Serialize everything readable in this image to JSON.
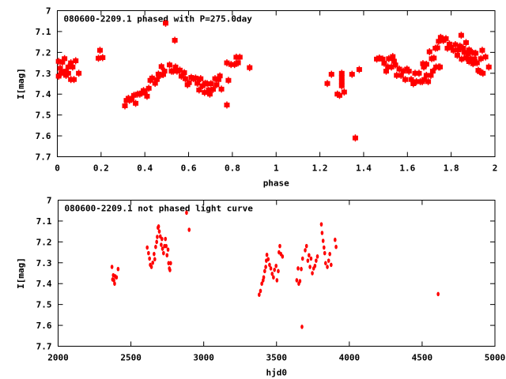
{
  "chart_data": [
    {
      "type": "scatter",
      "title": "080600-2209.1 phased with P=275.0day",
      "xlabel": "phase",
      "ylabel": "I[mag]",
      "xlim": [
        0,
        2
      ],
      "ylim": [
        7.7,
        7
      ],
      "xticks": [
        0,
        0.2,
        0.4,
        0.6,
        0.8,
        1,
        1.2,
        1.4,
        1.6,
        1.8,
        2
      ],
      "xtick_labels": [
        "0",
        "0.2",
        "0.4",
        "0.6",
        "0.8",
        "1",
        "1.2",
        "1.4",
        "1.6",
        "1.8",
        "2"
      ],
      "yticks": [
        7,
        7.1,
        7.2,
        7.3,
        7.4,
        7.5,
        7.6,
        7.7
      ],
      "ytick_labels": [
        "7",
        "7.1",
        "7.2",
        "7.3",
        "7.4",
        "7.5",
        "7.6",
        "7.7"
      ],
      "grid": false,
      "marker_color": "#ff0000",
      "points": [
        [
          0.006,
          7.243
        ],
        [
          0.013,
          7.276
        ],
        [
          0.023,
          7.247
        ],
        [
          0.033,
          7.23
        ],
        [
          0.006,
          7.314
        ],
        [
          0.028,
          7.297
        ],
        [
          0.04,
          7.29
        ],
        [
          0.05,
          7.27
        ],
        [
          0.05,
          7.3
        ],
        [
          0.062,
          7.25
        ],
        [
          0.062,
          7.33
        ],
        [
          0.07,
          7.27
        ],
        [
          0.076,
          7.33
        ],
        [
          0.084,
          7.24
        ],
        [
          0.098,
          7.3
        ],
        [
          0.04,
          7.31
        ],
        [
          0.018,
          7.3
        ],
        [
          0.188,
          7.228
        ],
        [
          0.195,
          7.19
        ],
        [
          0.207,
          7.225
        ],
        [
          0.309,
          7.456
        ],
        [
          0.316,
          7.43
        ],
        [
          0.325,
          7.42
        ],
        [
          0.33,
          7.43
        ],
        [
          0.34,
          7.425
        ],
        [
          0.35,
          7.406
        ],
        [
          0.358,
          7.444
        ],
        [
          0.367,
          7.4
        ],
        [
          0.377,
          7.4
        ],
        [
          0.385,
          7.395
        ],
        [
          0.394,
          7.383
        ],
        [
          0.4,
          7.39
        ],
        [
          0.41,
          7.41
        ],
        [
          0.418,
          7.372
        ],
        [
          0.425,
          7.334
        ],
        [
          0.433,
          7.323
        ],
        [
          0.447,
          7.348
        ],
        [
          0.455,
          7.33
        ],
        [
          0.462,
          7.304
        ],
        [
          0.47,
          7.31
        ],
        [
          0.476,
          7.268
        ],
        [
          0.484,
          7.306
        ],
        [
          0.49,
          7.29
        ],
        [
          0.495,
          7.06
        ],
        [
          0.513,
          7.26
        ],
        [
          0.522,
          7.29
        ],
        [
          0.53,
          7.29
        ],
        [
          0.537,
          7.142
        ],
        [
          0.54,
          7.27
        ],
        [
          0.547,
          7.29
        ],
        [
          0.56,
          7.285
        ],
        [
          0.567,
          7.314
        ],
        [
          0.58,
          7.297
        ],
        [
          0.585,
          7.326
        ],
        [
          0.595,
          7.355
        ],
        [
          0.602,
          7.345
        ],
        [
          0.612,
          7.32
        ],
        [
          0.622,
          7.326
        ],
        [
          0.632,
          7.323
        ],
        [
          0.64,
          7.348
        ],
        [
          0.648,
          7.38
        ],
        [
          0.655,
          7.326
        ],
        [
          0.664,
          7.36
        ],
        [
          0.673,
          7.392
        ],
        [
          0.676,
          7.348
        ],
        [
          0.685,
          7.35
        ],
        [
          0.692,
          7.38
        ],
        [
          0.697,
          7.4
        ],
        [
          0.702,
          7.35
        ],
        [
          0.712,
          7.377
        ],
        [
          0.721,
          7.326
        ],
        [
          0.728,
          7.355
        ],
        [
          0.737,
          7.33
        ],
        [
          0.743,
          7.313
        ],
        [
          0.75,
          7.376
        ],
        [
          0.775,
          7.25
        ],
        [
          0.775,
          7.452
        ],
        [
          0.782,
          7.334
        ],
        [
          0.794,
          7.258
        ],
        [
          0.81,
          7.258
        ],
        [
          0.826,
          7.25
        ],
        [
          0.818,
          7.223
        ],
        [
          0.834,
          7.223
        ],
        [
          0.879,
          7.273
        ],
        [
          1.234,
          7.349
        ],
        [
          1.253,
          7.305
        ],
        [
          1.28,
          7.4
        ],
        [
          1.29,
          7.406
        ],
        [
          1.3,
          7.3
        ],
        [
          1.3,
          7.32
        ],
        [
          1.3,
          7.34
        ],
        [
          1.3,
          7.36
        ],
        [
          1.311,
          7.39
        ],
        [
          1.347,
          7.305
        ],
        [
          1.362,
          7.61
        ],
        [
          1.38,
          7.282
        ],
        [
          1.46,
          7.232
        ],
        [
          1.472,
          7.227
        ],
        [
          1.487,
          7.232
        ],
        [
          1.494,
          7.252
        ],
        [
          1.503,
          7.29
        ],
        [
          1.511,
          7.27
        ],
        [
          1.515,
          7.23
        ],
        [
          1.527,
          7.27
        ],
        [
          1.533,
          7.22
        ],
        [
          1.539,
          7.242
        ],
        [
          1.545,
          7.26
        ],
        [
          1.551,
          7.31
        ],
        [
          1.563,
          7.28
        ],
        [
          1.571,
          7.31
        ],
        [
          1.581,
          7.29
        ],
        [
          1.59,
          7.33
        ],
        [
          1.598,
          7.28
        ],
        [
          1.607,
          7.29
        ],
        [
          1.617,
          7.33
        ],
        [
          1.627,
          7.35
        ],
        [
          1.635,
          7.3
        ],
        [
          1.641,
          7.34
        ],
        [
          1.653,
          7.3
        ],
        [
          1.659,
          7.34
        ],
        [
          1.668,
          7.34
        ],
        [
          1.671,
          7.254
        ],
        [
          1.675,
          7.27
        ],
        [
          1.677,
          7.33
        ],
        [
          1.687,
          7.257
        ],
        [
          1.687,
          7.31
        ],
        [
          1.695,
          7.34
        ],
        [
          1.701,
          7.197
        ],
        [
          1.707,
          7.31
        ],
        [
          1.711,
          7.23
        ],
        [
          1.716,
          7.29
        ],
        [
          1.721,
          7.227
        ],
        [
          1.728,
          7.18
        ],
        [
          1.731,
          7.27
        ],
        [
          1.737,
          7.178
        ],
        [
          1.743,
          7.27
        ],
        [
          1.749,
          7.27
        ],
        [
          1.743,
          7.147
        ],
        [
          1.752,
          7.128
        ],
        [
          1.764,
          7.143
        ],
        [
          1.776,
          7.134
        ],
        [
          1.783,
          7.18
        ],
        [
          1.792,
          7.16
        ],
        [
          1.8,
          7.176
        ],
        [
          1.81,
          7.19
        ],
        [
          1.819,
          7.163
        ],
        [
          1.828,
          7.214
        ],
        [
          1.834,
          7.188
        ],
        [
          1.84,
          7.17
        ],
        [
          1.846,
          7.118
        ],
        [
          1.848,
          7.232
        ],
        [
          1.855,
          7.18
        ],
        [
          1.86,
          7.2
        ],
        [
          1.868,
          7.153
        ],
        [
          1.868,
          7.227
        ],
        [
          1.876,
          7.206
        ],
        [
          1.882,
          7.188
        ],
        [
          1.882,
          7.244
        ],
        [
          1.888,
          7.23
        ],
        [
          1.896,
          7.2
        ],
        [
          1.9,
          7.254
        ],
        [
          1.906,
          7.232
        ],
        [
          1.912,
          7.204
        ],
        [
          1.918,
          7.25
        ],
        [
          1.924,
          7.286
        ],
        [
          1.93,
          7.292
        ],
        [
          1.936,
          7.23
        ],
        [
          1.942,
          7.19
        ],
        [
          1.945,
          7.3
        ],
        [
          1.957,
          7.222
        ],
        [
          1.972,
          7.27
        ]
      ]
    },
    {
      "type": "scatter",
      "title": "080600-2209.1 not phased light curve",
      "xlabel": "hjd0",
      "ylabel": "I[mag]",
      "xlim": [
        2000,
        5000
      ],
      "ylim": [
        7.7,
        7
      ],
      "xticks": [
        2000,
        2500,
        3000,
        3500,
        4000,
        4500,
        5000
      ],
      "xtick_labels": [
        "2000",
        "2500",
        "3000",
        "3500",
        "4000",
        "4500",
        "5000"
      ],
      "yticks": [
        7,
        7.1,
        7.2,
        7.3,
        7.4,
        7.5,
        7.6,
        7.7
      ],
      "ytick_labels": [
        "7",
        "7.1",
        "7.2",
        "7.3",
        "7.4",
        "7.5",
        "7.6",
        "7.7"
      ],
      "grid": false,
      "marker_color": "#ff0000",
      "points": [
        [
          2370,
          7.32
        ],
        [
          2379,
          7.36
        ],
        [
          2383,
          7.384
        ],
        [
          2388,
          7.4
        ],
        [
          2401,
          7.37
        ],
        [
          2412,
          7.33
        ],
        [
          2374,
          7.38
        ],
        [
          2392,
          7.365
        ],
        [
          2612,
          7.227
        ],
        [
          2621,
          7.254
        ],
        [
          2628,
          7.28
        ],
        [
          2633,
          7.31
        ],
        [
          2641,
          7.32
        ],
        [
          2650,
          7.3
        ],
        [
          2659,
          7.258
        ],
        [
          2664,
          7.283
        ],
        [
          2670,
          7.224
        ],
        [
          2677,
          7.2
        ],
        [
          2681,
          7.176
        ],
        [
          2686,
          7.132
        ],
        [
          2690,
          7.126
        ],
        [
          2695,
          7.15
        ],
        [
          2702,
          7.174
        ],
        [
          2708,
          7.214
        ],
        [
          2713,
          7.186
        ],
        [
          2717,
          7.233
        ],
        [
          2724,
          7.254
        ],
        [
          2731,
          7.22
        ],
        [
          2737,
          7.186
        ],
        [
          2742,
          7.22
        ],
        [
          2748,
          7.264
        ],
        [
          2755,
          7.237
        ],
        [
          2759,
          7.302
        ],
        [
          2764,
          7.327
        ],
        [
          2768,
          7.335
        ],
        [
          2773,
          7.302
        ],
        [
          2882,
          7.06
        ],
        [
          2900,
          7.142
        ],
        [
          3381,
          7.453
        ],
        [
          3390,
          7.435
        ],
        [
          3399,
          7.4
        ],
        [
          3408,
          7.384
        ],
        [
          3412,
          7.37
        ],
        [
          3419,
          7.34
        ],
        [
          3426,
          7.32
        ],
        [
          3430,
          7.29
        ],
        [
          3434,
          7.262
        ],
        [
          3443,
          7.283
        ],
        [
          3452,
          7.31
        ],
        [
          3461,
          7.327
        ],
        [
          3470,
          7.353
        ],
        [
          3479,
          7.37
        ],
        [
          3486,
          7.334
        ],
        [
          3497,
          7.315
        ],
        [
          3503,
          7.384
        ],
        [
          3512,
          7.34
        ],
        [
          3517,
          7.25
        ],
        [
          3523,
          7.22
        ],
        [
          3530,
          7.258
        ],
        [
          3541,
          7.27
        ],
        [
          3639,
          7.384
        ],
        [
          3648,
          7.327
        ],
        [
          3653,
          7.4
        ],
        [
          3661,
          7.388
        ],
        [
          3670,
          7.33
        ],
        [
          3675,
          7.607
        ],
        [
          3679,
          7.28
        ],
        [
          3697,
          7.24
        ],
        [
          3706,
          7.22
        ],
        [
          3715,
          7.29
        ],
        [
          3723,
          7.264
        ],
        [
          3730,
          7.32
        ],
        [
          3737,
          7.28
        ],
        [
          3746,
          7.35
        ],
        [
          3755,
          7.327
        ],
        [
          3764,
          7.315
        ],
        [
          3772,
          7.29
        ],
        [
          3781,
          7.27
        ],
        [
          3808,
          7.116
        ],
        [
          3813,
          7.157
        ],
        [
          3820,
          7.195
        ],
        [
          3826,
          7.227
        ],
        [
          3831,
          7.254
        ],
        [
          3837,
          7.302
        ],
        [
          3849,
          7.32
        ],
        [
          3858,
          7.29
        ],
        [
          3866,
          7.258
        ],
        [
          3875,
          7.31
        ],
        [
          3902,
          7.19
        ],
        [
          3909,
          7.224
        ],
        [
          4610,
          7.45
        ]
      ]
    }
  ]
}
